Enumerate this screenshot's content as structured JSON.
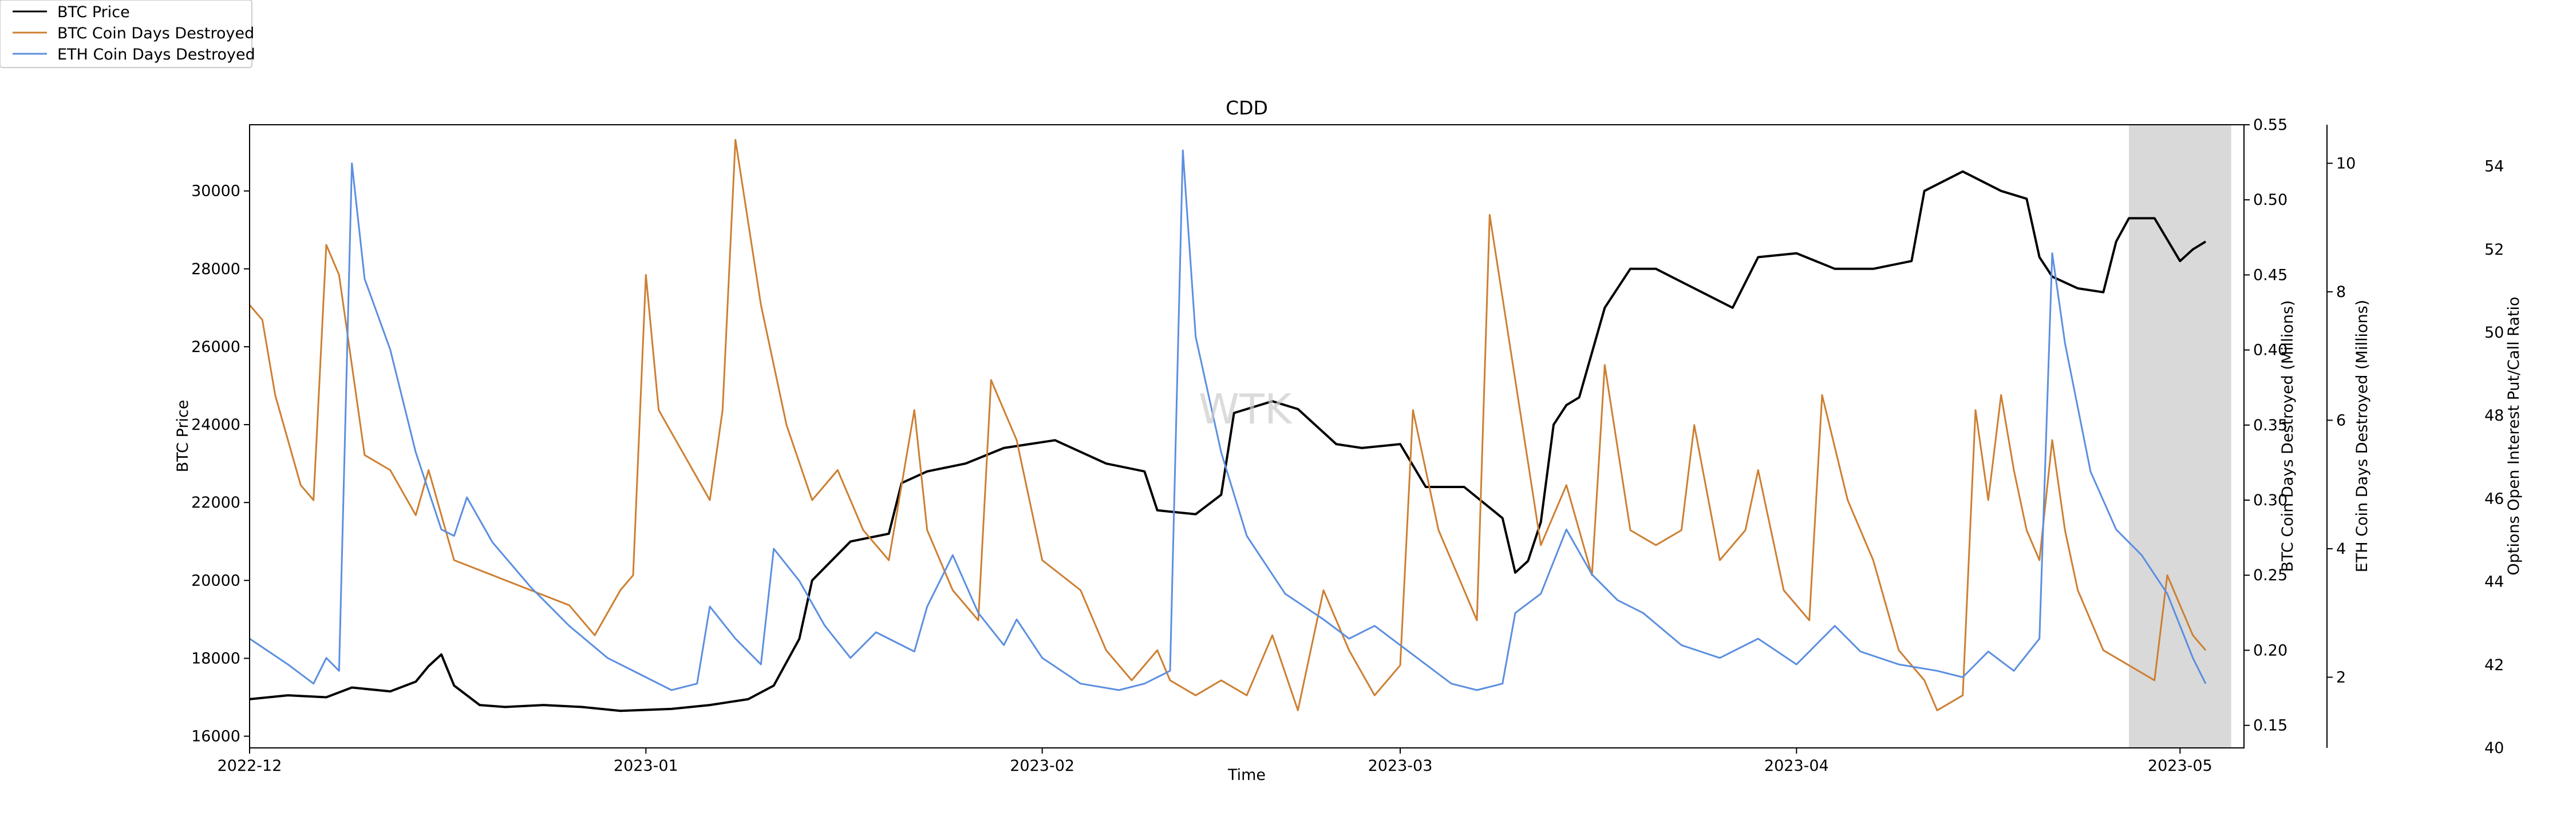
{
  "chart_data": {
    "type": "line",
    "title": "CDD",
    "xlabel": "Time",
    "x_ticks": [
      "2022-12",
      "2023-01",
      "2023-02",
      "2023-03",
      "2023-04",
      "2023-05"
    ],
    "x_range": [
      "2022-12-01",
      "2023-05-06"
    ],
    "watermark": "WTK",
    "shaded_region": {
      "start": "2023-04-27",
      "end": "2023-05-05",
      "color": "#d9d9d9"
    },
    "legend_placement": "top-left, outside plot",
    "axes": {
      "btc_price": {
        "label": "BTC Price",
        "side": "left",
        "ylim": [
          15700,
          31700
        ],
        "ticks": [
          16000,
          18000,
          20000,
          22000,
          24000,
          26000,
          28000,
          30000
        ]
      },
      "btc_cdd": {
        "label": "BTC Coin Days Destroyed (Millions)",
        "side": "right",
        "ylim": [
          0.135,
          0.55
        ],
        "ticks": [
          0.15,
          0.2,
          0.25,
          0.3,
          0.35,
          0.4,
          0.45,
          0.5,
          0.55
        ]
      },
      "eth_cdd": {
        "label": "ETH Coin Days Destroyed (Millions)",
        "side": "right",
        "ylim": [
          0.9,
          10.6
        ],
        "ticks": [
          2,
          4,
          6,
          8,
          10
        ]
      },
      "put_call": {
        "label": "Options Open Interest Put/Call Ratio",
        "side": "right",
        "ylim": [
          40,
          55
        ],
        "ticks": [
          40,
          42,
          44,
          46,
          48,
          50,
          52,
          54
        ]
      }
    },
    "series": [
      {
        "name": "BTC Price",
        "axis": "btc_price",
        "color": "#000000",
        "points": [
          [
            "2022-12-01",
            16950
          ],
          [
            "2022-12-04",
            17050
          ],
          [
            "2022-12-07",
            17000
          ],
          [
            "2022-12-09",
            17250
          ],
          [
            "2022-12-12",
            17150
          ],
          [
            "2022-12-14",
            17400
          ],
          [
            "2022-12-15",
            17800
          ],
          [
            "2022-12-16",
            18100
          ],
          [
            "2022-12-17",
            17300
          ],
          [
            "2022-12-19",
            16800
          ],
          [
            "2022-12-21",
            16750
          ],
          [
            "2022-12-24",
            16800
          ],
          [
            "2022-12-27",
            16750
          ],
          [
            "2022-12-30",
            16650
          ],
          [
            "2023-01-03",
            16700
          ],
          [
            "2023-01-06",
            16800
          ],
          [
            "2023-01-09",
            16950
          ],
          [
            "2023-01-11",
            17300
          ],
          [
            "2023-01-13",
            18500
          ],
          [
            "2023-01-14",
            20000
          ],
          [
            "2023-01-17",
            21000
          ],
          [
            "2023-01-20",
            21200
          ],
          [
            "2023-01-21",
            22500
          ],
          [
            "2023-01-23",
            22800
          ],
          [
            "2023-01-26",
            23000
          ],
          [
            "2023-01-29",
            23400
          ],
          [
            "2023-02-02",
            23600
          ],
          [
            "2023-02-06",
            23000
          ],
          [
            "2023-02-09",
            22800
          ],
          [
            "2023-02-10",
            21800
          ],
          [
            "2023-02-13",
            21700
          ],
          [
            "2023-02-15",
            22200
          ],
          [
            "2023-02-16",
            24300
          ],
          [
            "2023-02-19",
            24600
          ],
          [
            "2023-02-21",
            24400
          ],
          [
            "2023-02-24",
            23500
          ],
          [
            "2023-02-26",
            23400
          ],
          [
            "2023-03-01",
            23500
          ],
          [
            "2023-03-03",
            22400
          ],
          [
            "2023-03-06",
            22400
          ],
          [
            "2023-03-09",
            21600
          ],
          [
            "2023-03-10",
            20200
          ],
          [
            "2023-03-11",
            20500
          ],
          [
            "2023-03-12",
            21500
          ],
          [
            "2023-03-13",
            24000
          ],
          [
            "2023-03-14",
            24500
          ],
          [
            "2023-03-15",
            24700
          ],
          [
            "2023-03-17",
            27000
          ],
          [
            "2023-03-19",
            28000
          ],
          [
            "2023-03-21",
            28000
          ],
          [
            "2023-03-24",
            27500
          ],
          [
            "2023-03-27",
            27000
          ],
          [
            "2023-03-29",
            28300
          ],
          [
            "2023-04-01",
            28400
          ],
          [
            "2023-04-04",
            28000
          ],
          [
            "2023-04-07",
            28000
          ],
          [
            "2023-04-10",
            28200
          ],
          [
            "2023-04-11",
            30000
          ],
          [
            "2023-04-14",
            30500
          ],
          [
            "2023-04-17",
            30000
          ],
          [
            "2023-04-19",
            29800
          ],
          [
            "2023-04-20",
            28300
          ],
          [
            "2023-04-21",
            27800
          ],
          [
            "2023-04-23",
            27500
          ],
          [
            "2023-04-25",
            27400
          ],
          [
            "2023-04-26",
            28700
          ],
          [
            "2023-04-27",
            29300
          ],
          [
            "2023-04-29",
            29300
          ],
          [
            "2023-05-01",
            28200
          ],
          [
            "2023-05-02",
            28500
          ],
          [
            "2023-05-03",
            28700
          ]
        ]
      },
      {
        "name": "BTC Coin Days Destroyed",
        "axis": "btc_cdd",
        "color": "#cd7f32",
        "points": [
          [
            "2022-12-01",
            0.43
          ],
          [
            "2022-12-02",
            0.42
          ],
          [
            "2022-12-03",
            0.37
          ],
          [
            "2022-12-05",
            0.31
          ],
          [
            "2022-12-06",
            0.3
          ],
          [
            "2022-12-07",
            0.47
          ],
          [
            "2022-12-08",
            0.45
          ],
          [
            "2022-12-10",
            0.33
          ],
          [
            "2022-12-12",
            0.32
          ],
          [
            "2022-12-14",
            0.29
          ],
          [
            "2022-12-15",
            0.32
          ],
          [
            "2022-12-17",
            0.26
          ],
          [
            "2022-12-20",
            0.25
          ],
          [
            "2022-12-23",
            0.24
          ],
          [
            "2022-12-26",
            0.23
          ],
          [
            "2022-12-28",
            0.21
          ],
          [
            "2022-12-30",
            0.24
          ],
          [
            "2022-12-31",
            0.25
          ],
          [
            "2023-01-01",
            0.45
          ],
          [
            "2023-01-02",
            0.36
          ],
          [
            "2023-01-04",
            0.33
          ],
          [
            "2023-01-06",
            0.3
          ],
          [
            "2023-01-07",
            0.36
          ],
          [
            "2023-01-08",
            0.54
          ],
          [
            "2023-01-10",
            0.43
          ],
          [
            "2023-01-12",
            0.35
          ],
          [
            "2023-01-14",
            0.3
          ],
          [
            "2023-01-16",
            0.32
          ],
          [
            "2023-01-18",
            0.28
          ],
          [
            "2023-01-20",
            0.26
          ],
          [
            "2023-01-22",
            0.36
          ],
          [
            "2023-01-23",
            0.28
          ],
          [
            "2023-01-25",
            0.24
          ],
          [
            "2023-01-27",
            0.22
          ],
          [
            "2023-01-28",
            0.38
          ],
          [
            "2023-01-30",
            0.34
          ],
          [
            "2023-02-01",
            0.26
          ],
          [
            "2023-02-04",
            0.24
          ],
          [
            "2023-02-06",
            0.2
          ],
          [
            "2023-02-08",
            0.18
          ],
          [
            "2023-02-10",
            0.2
          ],
          [
            "2023-02-11",
            0.18
          ],
          [
            "2023-02-13",
            0.17
          ],
          [
            "2023-02-15",
            0.18
          ],
          [
            "2023-02-17",
            0.17
          ],
          [
            "2023-02-19",
            0.21
          ],
          [
            "2023-02-21",
            0.16
          ],
          [
            "2023-02-23",
            0.24
          ],
          [
            "2023-02-25",
            0.2
          ],
          [
            "2023-02-27",
            0.17
          ],
          [
            "2023-03-01",
            0.19
          ],
          [
            "2023-03-02",
            0.36
          ],
          [
            "2023-03-04",
            0.28
          ],
          [
            "2023-03-06",
            0.24
          ],
          [
            "2023-03-07",
            0.22
          ],
          [
            "2023-03-08",
            0.49
          ],
          [
            "2023-03-10",
            0.38
          ],
          [
            "2023-03-12",
            0.27
          ],
          [
            "2023-03-14",
            0.31
          ],
          [
            "2023-03-16",
            0.25
          ],
          [
            "2023-03-17",
            0.39
          ],
          [
            "2023-03-19",
            0.28
          ],
          [
            "2023-03-21",
            0.27
          ],
          [
            "2023-03-23",
            0.28
          ],
          [
            "2023-03-24",
            0.35
          ],
          [
            "2023-03-26",
            0.26
          ],
          [
            "2023-03-28",
            0.28
          ],
          [
            "2023-03-29",
            0.32
          ],
          [
            "2023-03-31",
            0.24
          ],
          [
            "2023-04-02",
            0.22
          ],
          [
            "2023-04-03",
            0.37
          ],
          [
            "2023-04-05",
            0.3
          ],
          [
            "2023-04-07",
            0.26
          ],
          [
            "2023-04-09",
            0.2
          ],
          [
            "2023-04-11",
            0.18
          ],
          [
            "2023-04-12",
            0.16
          ],
          [
            "2023-04-14",
            0.17
          ],
          [
            "2023-04-15",
            0.36
          ],
          [
            "2023-04-16",
            0.3
          ],
          [
            "2023-04-17",
            0.37
          ],
          [
            "2023-04-18",
            0.32
          ],
          [
            "2023-04-19",
            0.28
          ],
          [
            "2023-04-20",
            0.26
          ],
          [
            "2023-04-21",
            0.34
          ],
          [
            "2023-04-22",
            0.28
          ],
          [
            "2023-04-23",
            0.24
          ],
          [
            "2023-04-25",
            0.2
          ],
          [
            "2023-04-27",
            0.19
          ],
          [
            "2023-04-29",
            0.18
          ],
          [
            "2023-04-30",
            0.25
          ],
          [
            "2023-05-01",
            0.23
          ],
          [
            "2023-05-02",
            0.21
          ],
          [
            "2023-05-03",
            0.2
          ]
        ]
      },
      {
        "name": "ETH Coin Days Destroyed",
        "axis": "eth_cdd",
        "color": "#5b8fe0",
        "points": [
          [
            "2022-12-01",
            2.6
          ],
          [
            "2022-12-04",
            2.2
          ],
          [
            "2022-12-06",
            1.9
          ],
          [
            "2022-12-07",
            2.3
          ],
          [
            "2022-12-08",
            2.1
          ],
          [
            "2022-12-09",
            10.0
          ],
          [
            "2022-12-10",
            8.2
          ],
          [
            "2022-12-12",
            7.1
          ],
          [
            "2022-12-14",
            5.5
          ],
          [
            "2022-12-16",
            4.3
          ],
          [
            "2022-12-17",
            4.2
          ],
          [
            "2022-12-18",
            4.8
          ],
          [
            "2022-12-20",
            4.1
          ],
          [
            "2022-12-23",
            3.4
          ],
          [
            "2022-12-26",
            2.8
          ],
          [
            "2022-12-29",
            2.3
          ],
          [
            "2023-01-01",
            2.0
          ],
          [
            "2023-01-03",
            1.8
          ],
          [
            "2023-01-05",
            1.9
          ],
          [
            "2023-01-06",
            3.1
          ],
          [
            "2023-01-08",
            2.6
          ],
          [
            "2023-01-10",
            2.2
          ],
          [
            "2023-01-11",
            4.0
          ],
          [
            "2023-01-13",
            3.5
          ],
          [
            "2023-01-15",
            2.8
          ],
          [
            "2023-01-17",
            2.3
          ],
          [
            "2023-01-19",
            2.7
          ],
          [
            "2023-01-22",
            2.4
          ],
          [
            "2023-01-23",
            3.1
          ],
          [
            "2023-01-25",
            3.9
          ],
          [
            "2023-01-27",
            3.0
          ],
          [
            "2023-01-29",
            2.5
          ],
          [
            "2023-01-30",
            2.9
          ],
          [
            "2023-02-01",
            2.3
          ],
          [
            "2023-02-04",
            1.9
          ],
          [
            "2023-02-07",
            1.8
          ],
          [
            "2023-02-09",
            1.9
          ],
          [
            "2023-02-10",
            2.0
          ],
          [
            "2023-02-11",
            2.1
          ],
          [
            "2023-02-12",
            10.2
          ],
          [
            "2023-02-13",
            7.3
          ],
          [
            "2023-02-15",
            5.5
          ],
          [
            "2023-02-17",
            4.2
          ],
          [
            "2023-02-20",
            3.3
          ],
          [
            "2023-02-23",
            2.9
          ],
          [
            "2023-02-25",
            2.6
          ],
          [
            "2023-02-27",
            2.8
          ],
          [
            "2023-03-01",
            2.5
          ],
          [
            "2023-03-03",
            2.2
          ],
          [
            "2023-03-05",
            1.9
          ],
          [
            "2023-03-07",
            1.8
          ],
          [
            "2023-03-09",
            1.9
          ],
          [
            "2023-03-10",
            3.0
          ],
          [
            "2023-03-12",
            3.3
          ],
          [
            "2023-03-14",
            4.3
          ],
          [
            "2023-03-16",
            3.6
          ],
          [
            "2023-03-18",
            3.2
          ],
          [
            "2023-03-20",
            3.0
          ],
          [
            "2023-03-23",
            2.5
          ],
          [
            "2023-03-26",
            2.3
          ],
          [
            "2023-03-29",
            2.6
          ],
          [
            "2023-04-01",
            2.2
          ],
          [
            "2023-04-04",
            2.8
          ],
          [
            "2023-04-06",
            2.4
          ],
          [
            "2023-04-09",
            2.2
          ],
          [
            "2023-04-12",
            2.1
          ],
          [
            "2023-04-14",
            2.0
          ],
          [
            "2023-04-16",
            2.4
          ],
          [
            "2023-04-18",
            2.1
          ],
          [
            "2023-04-20",
            2.6
          ],
          [
            "2023-04-21",
            8.6
          ],
          [
            "2023-04-22",
            7.2
          ],
          [
            "2023-04-24",
            5.2
          ],
          [
            "2023-04-26",
            4.3
          ],
          [
            "2023-04-28",
            3.9
          ],
          [
            "2023-04-30",
            3.3
          ],
          [
            "2023-05-02",
            2.3
          ],
          [
            "2023-05-03",
            1.9
          ]
        ]
      }
    ]
  }
}
